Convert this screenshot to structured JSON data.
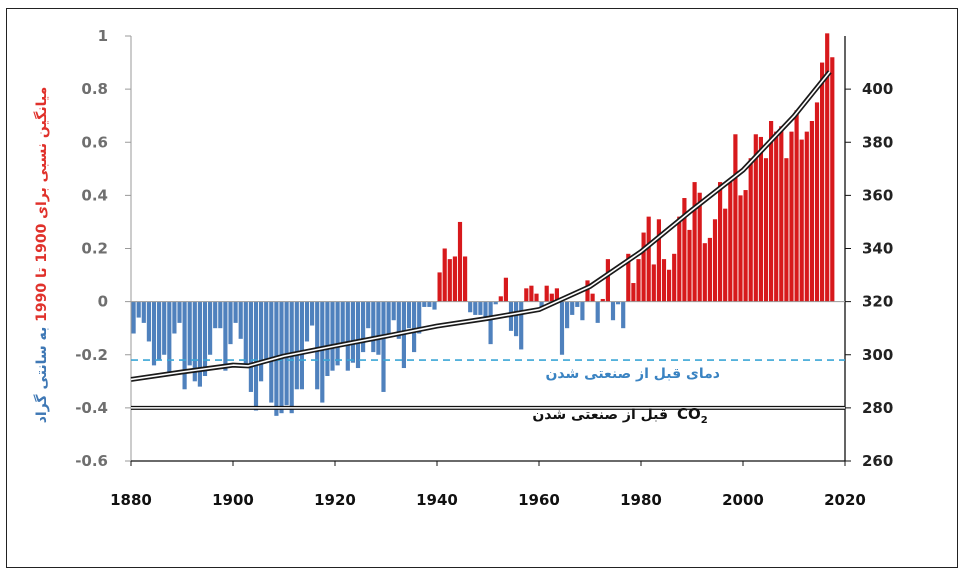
{
  "chart_data": {
    "type": "bar",
    "x_range": [
      1880,
      2020
    ],
    "x_ticks": [
      "1880",
      "1900",
      "1920",
      "1940",
      "1960",
      "1980",
      "2000",
      "2020"
    ],
    "y_left": {
      "range": [
        -0.6,
        1
      ],
      "ticks": [
        "1",
        "0.8",
        "0.6",
        "0.4",
        "0.2",
        "0",
        "-0.2",
        "-0.4",
        "-0.6"
      ],
      "label_parts": [
        {
          "text": "میانگین نسبی برای 1900 تا 1990",
          "color": "#e0312b"
        },
        {
          "text": " به سانتی گراد",
          "color": "#3f78b5"
        }
      ]
    },
    "y_right": {
      "range": [
        260,
        420
      ],
      "ticks": [
        "400",
        "380",
        "360",
        "340",
        "320",
        "300",
        "280",
        "260"
      ]
    },
    "colors": {
      "positive": "#d7191c",
      "negative": "#4f81bd",
      "co2_line": "#1a1a1a",
      "preind_temp": "#3ba6d6"
    },
    "temperature_anomaly": {
      "years": [
        1880,
        1881,
        1882,
        1883,
        1884,
        1885,
        1886,
        1887,
        1888,
        1889,
        1890,
        1891,
        1892,
        1893,
        1894,
        1895,
        1896,
        1897,
        1898,
        1899,
        1900,
        1901,
        1902,
        1903,
        1904,
        1905,
        1906,
        1907,
        1908,
        1909,
        1910,
        1911,
        1912,
        1913,
        1914,
        1915,
        1916,
        1917,
        1918,
        1919,
        1920,
        1921,
        1922,
        1923,
        1924,
        1925,
        1926,
        1927,
        1928,
        1929,
        1930,
        1931,
        1932,
        1933,
        1934,
        1935,
        1936,
        1937,
        1938,
        1939,
        1940,
        1941,
        1942,
        1943,
        1944,
        1945,
        1946,
        1947,
        1948,
        1949,
        1950,
        1951,
        1952,
        1953,
        1954,
        1955,
        1956,
        1957,
        1958,
        1959,
        1960,
        1961,
        1962,
        1963,
        1964,
        1965,
        1966,
        1967,
        1968,
        1969,
        1970,
        1971,
        1972,
        1973,
        1974,
        1975,
        1976,
        1977,
        1978,
        1979,
        1980,
        1981,
        1982,
        1983,
        1984,
        1985,
        1986,
        1987,
        1988,
        1989,
        1990,
        1991,
        1992,
        1993,
        1994,
        1995,
        1996,
        1997,
        1998,
        1999,
        2000,
        2001,
        2002,
        2003,
        2004,
        2005,
        2006,
        2007,
        2008,
        2009,
        2010,
        2011,
        2012,
        2013,
        2014,
        2015,
        2016,
        2017
      ],
      "values": [
        -0.12,
        -0.06,
        -0.08,
        -0.15,
        -0.24,
        -0.22,
        -0.2,
        -0.28,
        -0.12,
        -0.08,
        -0.33,
        -0.24,
        -0.3,
        -0.32,
        -0.28,
        -0.2,
        -0.1,
        -0.1,
        -0.26,
        -0.16,
        -0.08,
        -0.14,
        -0.24,
        -0.34,
        -0.41,
        -0.3,
        -0.22,
        -0.38,
        -0.43,
        -0.42,
        -0.39,
        -0.42,
        -0.33,
        -0.33,
        -0.15,
        -0.09,
        -0.33,
        -0.38,
        -0.28,
        -0.26,
        -0.24,
        -0.16,
        -0.26,
        -0.23,
        -0.25,
        -0.19,
        -0.1,
        -0.19,
        -0.2,
        -0.34,
        -0.13,
        -0.07,
        -0.14,
        -0.25,
        -0.1,
        -0.19,
        -0.12,
        -0.02,
        -0.02,
        -0.03,
        0.11,
        0.2,
        0.16,
        0.17,
        0.3,
        0.17,
        -0.04,
        -0.05,
        -0.05,
        -0.06,
        -0.16,
        -0.01,
        0.02,
        0.09,
        -0.11,
        -0.13,
        -0.18,
        0.05,
        0.06,
        0.03,
        -0.03,
        0.06,
        0.03,
        0.05,
        -0.2,
        -0.1,
        -0.05,
        -0.02,
        -0.07,
        0.08,
        0.03,
        -0.08,
        0.01,
        0.16,
        -0.07,
        -0.01,
        -0.1,
        0.18,
        0.07,
        0.16,
        0.26,
        0.32,
        0.14,
        0.31,
        0.16,
        0.12,
        0.18,
        0.32,
        0.39,
        0.27,
        0.45,
        0.41,
        0.22,
        0.24,
        0.31,
        0.45,
        0.35,
        0.46,
        0.63,
        0.4,
        0.42,
        0.54,
        0.63,
        0.62,
        0.54,
        0.68,
        0.64,
        0.66,
        0.54,
        0.64,
        0.72,
        0.61,
        0.64,
        0.68,
        0.75,
        0.9,
        1.01,
        0.92
      ]
    },
    "co2_ppm": {
      "years": [
        1880,
        1890,
        1900,
        1903,
        1910,
        1920,
        1930,
        1940,
        1950,
        1960,
        1970,
        1980,
        1990,
        2000,
        2010,
        2017
      ],
      "values": [
        290.7,
        293.5,
        296.1,
        295.8,
        299.5,
        303.3,
        307.0,
        310.8,
        313.7,
        317.0,
        325.7,
        338.8,
        354.5,
        369.5,
        389.8,
        406.5
      ]
    },
    "preindustrial_temperature": -0.22,
    "preindustrial_co2": 280,
    "annotations": {
      "preind_temp_label": "دمای قبل از صنعتی شدن",
      "preind_co2_label": "قبل از صنعتی شدن",
      "co2_main": "CO",
      "co2_sub": "2"
    }
  }
}
